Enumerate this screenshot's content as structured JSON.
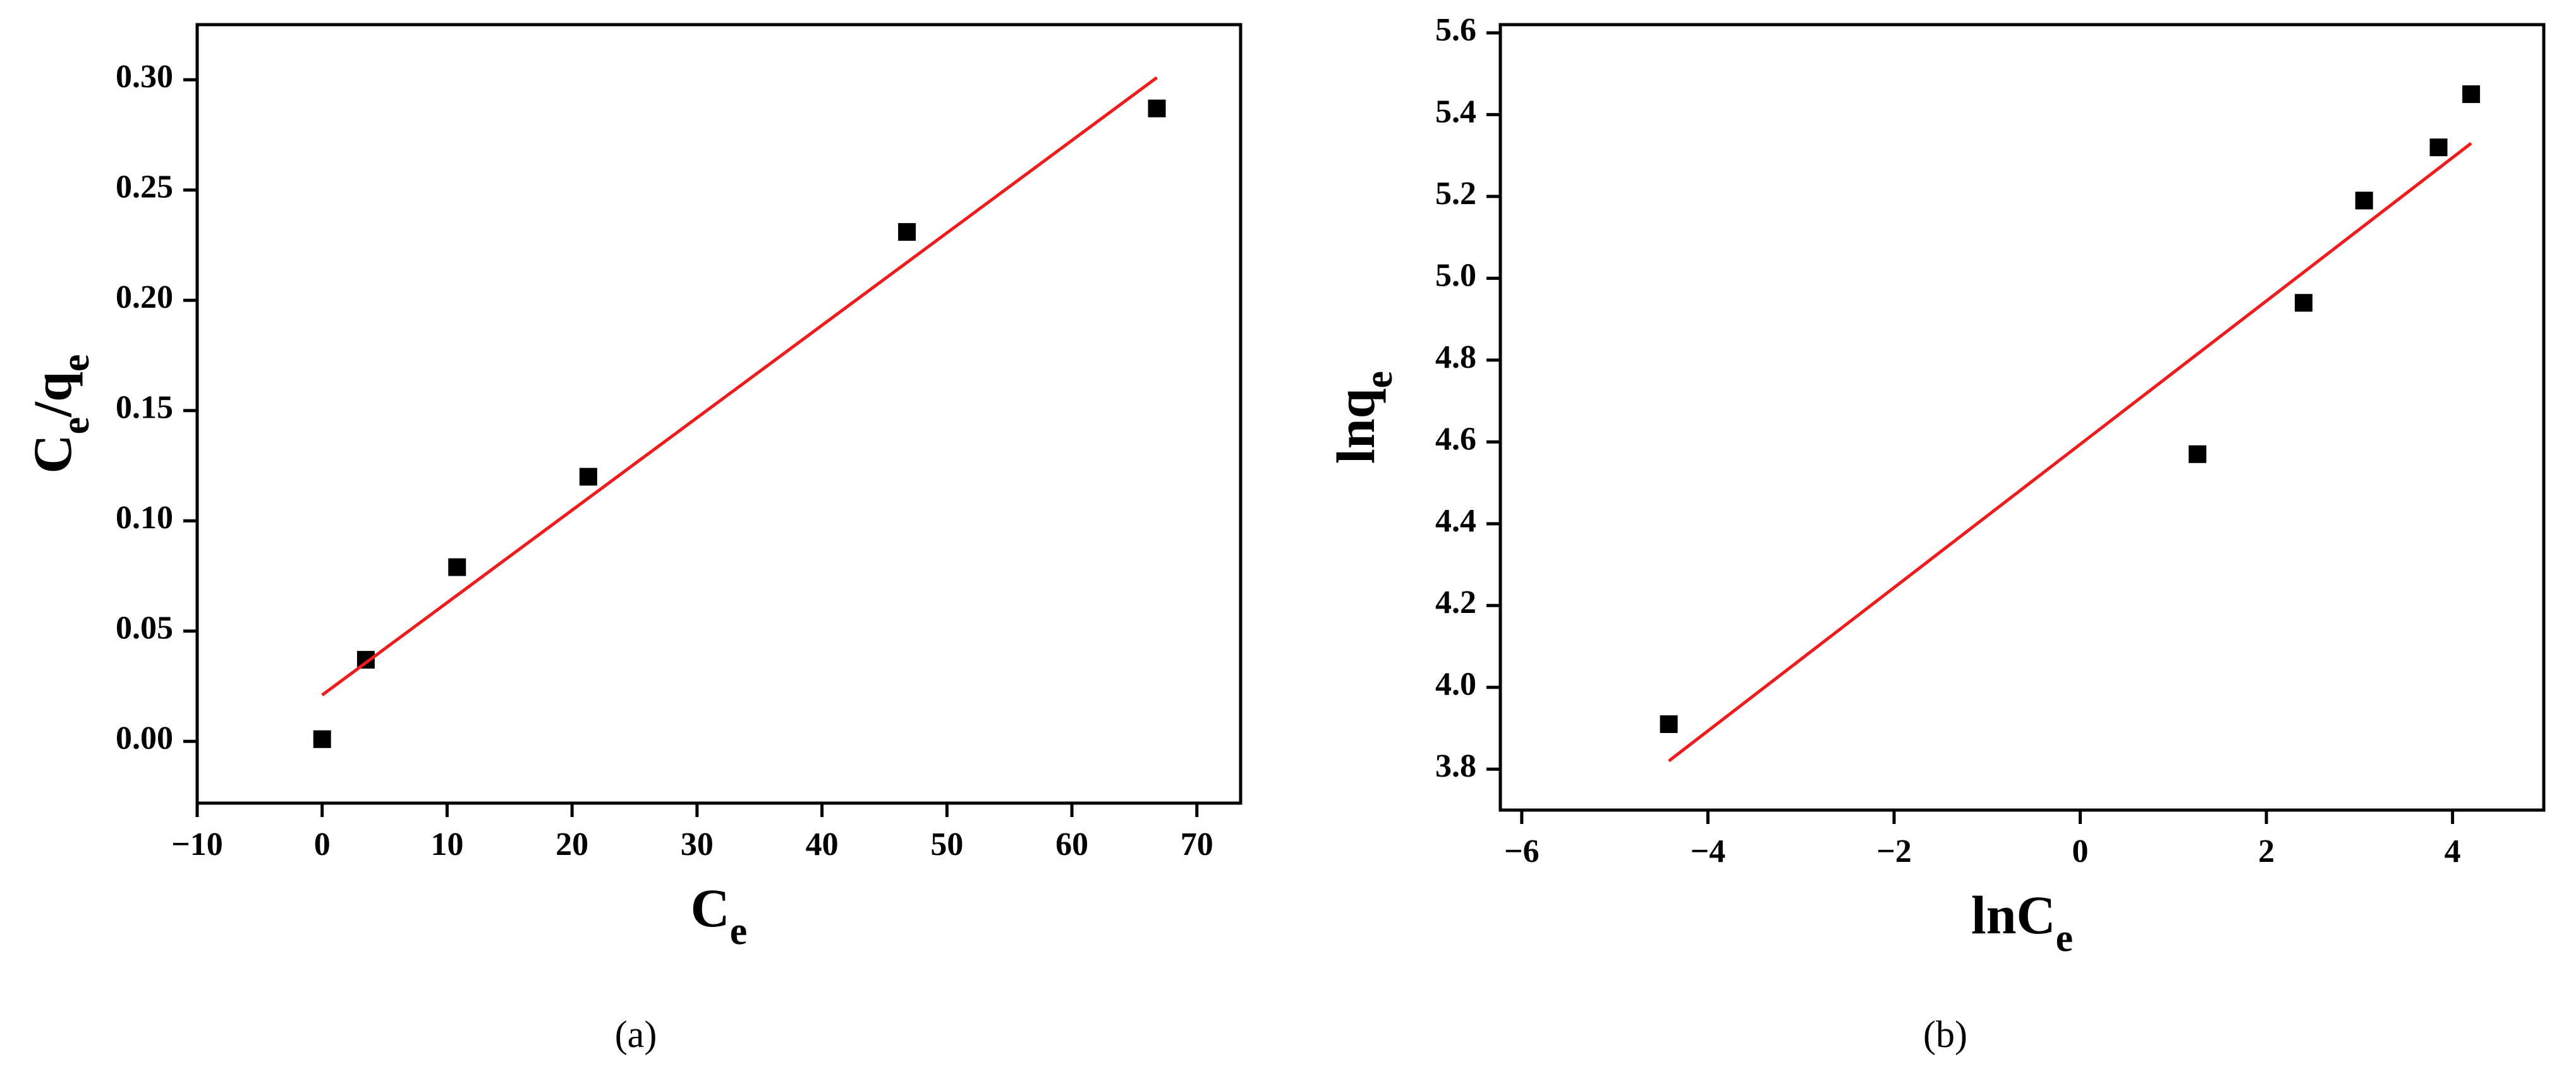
{
  "chart_data": [
    {
      "type": "scatter",
      "xlabel": [
        {
          "text": "C"
        },
        {
          "text": "e",
          "sub": true
        }
      ],
      "ylabel": [
        {
          "text": "C"
        },
        {
          "text": "e",
          "sub": true
        },
        {
          "text": "/q"
        },
        {
          "text": "e",
          "sub": true
        }
      ],
      "caption": "(a)",
      "xlim": [
        -10,
        73.5
      ],
      "ylim": [
        -0.028,
        0.325
      ],
      "xticks": [
        {
          "value": -10,
          "label": "−10"
        },
        0,
        10,
        20,
        30,
        40,
        50,
        60,
        70
      ],
      "yticks": [
        {
          "value": 0,
          "label": "0.00"
        },
        {
          "value": 0.05,
          "label": "0.05"
        },
        {
          "value": 0.1,
          "label": "0.10"
        },
        {
          "value": 0.15,
          "label": "0.15"
        },
        {
          "value": 0.2,
          "label": "0.20"
        },
        {
          "value": 0.25,
          "label": "0.25"
        },
        {
          "value": 0.3,
          "label": "0.30"
        }
      ],
      "series": [
        {
          "style": "square",
          "color": "#000000",
          "x": [
            0,
            3.5,
            10.8,
            21.3,
            46.8,
            66.8
          ],
          "values": [
            0.001,
            0.037,
            0.079,
            0.12,
            0.231,
            0.287
          ]
        },
        {
          "style": "line",
          "color": "#ee1c1c",
          "x": [
            0,
            66.8
          ],
          "values": [
            0.021,
            0.301
          ]
        }
      ]
    },
    {
      "type": "scatter",
      "xlabel": [
        {
          "text": "lnC"
        },
        {
          "text": "e",
          "sub": true
        }
      ],
      "ylabel": [
        {
          "text": "lnq"
        },
        {
          "text": "e",
          "sub": true
        }
      ],
      "caption": "(b)",
      "xlim": [
        -6.23,
        4.98
      ],
      "ylim": [
        3.7,
        5.62
      ],
      "xticks": [
        {
          "value": -6,
          "label": "−6"
        },
        {
          "value": -4,
          "label": "−4"
        },
        {
          "value": -2,
          "label": "−2"
        },
        0,
        2,
        4
      ],
      "yticks": [
        3.8,
        {
          "value": 4,
          "label": "4.0"
        },
        4.2,
        4.4,
        4.6,
        4.8,
        {
          "value": 5,
          "label": "5.0"
        },
        5.2,
        5.4,
        5.6
      ],
      "series": [
        {
          "style": "square",
          "color": "#000000",
          "x": [
            -4.42,
            1.26,
            2.4,
            3.05,
            3.85,
            4.2
          ],
          "values": [
            3.91,
            4.57,
            4.94,
            5.19,
            5.32,
            5.45
          ]
        },
        {
          "style": "line",
          "color": "#ee1c1c",
          "x": [
            -4.42,
            4.2
          ],
          "values": [
            3.82,
            5.33
          ]
        }
      ]
    }
  ]
}
